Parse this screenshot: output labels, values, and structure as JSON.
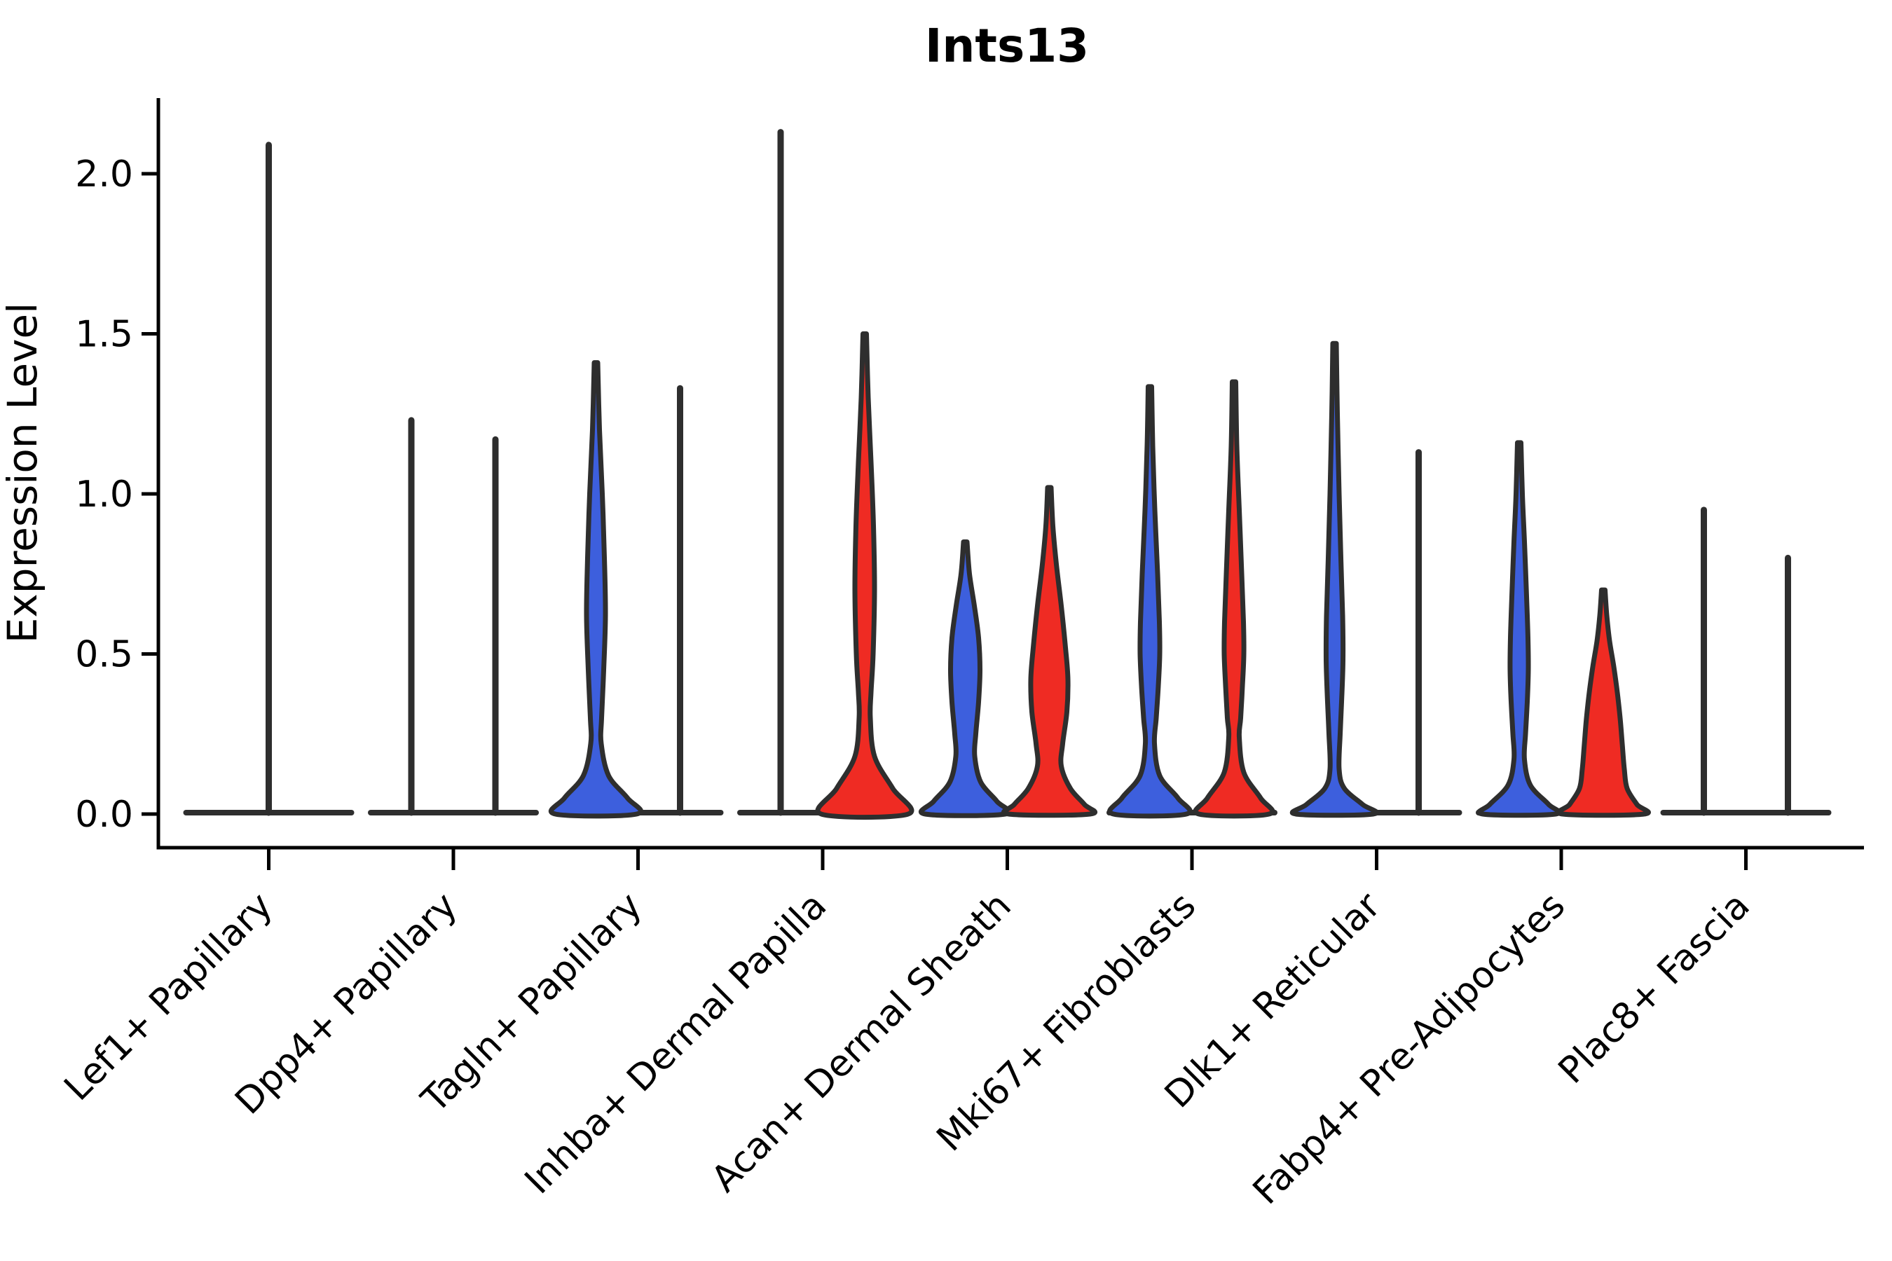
{
  "chart_data": {
    "type": "violin",
    "title": "Ints13",
    "ylabel": "Expression Level",
    "xlabel": "",
    "ylim": [
      -0.105,
      2.34
    ],
    "grid": false,
    "legend": "none",
    "yticks": [
      {
        "value": 0.0,
        "label": "0.0"
      },
      {
        "value": 0.5,
        "label": "0.5"
      },
      {
        "value": 1.0,
        "label": "1.0"
      },
      {
        "value": 1.5,
        "label": "1.5"
      },
      {
        "value": 2.0,
        "label": "2.0"
      }
    ],
    "categories": [
      "Lef1+ Papillary",
      "Dpp4+ Papillary",
      "Tagln+ Papillary",
      "Inhba+ Dermal Papilla",
      "Acan+ Dermal Sheath",
      "Mki67+ Fibroblasts",
      "Dlk1+ Reticular",
      "Fabp4+ Pre-Adipocytes",
      "Plac8+ Fascia"
    ],
    "series_colors": {
      "blue": "#3D5FDD",
      "red": "#EF2B23",
      "edge": "#2E2E2E"
    },
    "groups": [
      {
        "label": "Lef1+ Papillary",
        "violins": [
          {
            "series": "blue",
            "kind": "spike",
            "offset": 0,
            "max": 2.09
          }
        ]
      },
      {
        "label": "Dpp4+ Papillary",
        "violins": [
          {
            "series": "blue",
            "kind": "spike",
            "offset": -60,
            "max": 1.23
          },
          {
            "series": "red",
            "kind": "spike",
            "offset": 60,
            "max": 1.17
          }
        ]
      },
      {
        "label": "Tagln+ Papillary",
        "violins": [
          {
            "series": "blue",
            "kind": "violin",
            "offset": -60,
            "max": 1.41,
            "profile": [
              [
                1.41,
                2.5
              ],
              [
                1.2,
                5
              ],
              [
                1.0,
                9
              ],
              [
                0.8,
                12
              ],
              [
                0.62,
                13.5
              ],
              [
                0.45,
                11
              ],
              [
                0.3,
                8
              ],
              [
                0.22,
                7.5
              ],
              [
                0.12,
                18
              ],
              [
                0.05,
                45
              ],
              [
                0,
                58
              ]
            ]
          },
          {
            "series": "red",
            "kind": "spike",
            "offset": 60,
            "max": 1.33
          }
        ]
      },
      {
        "label": "Inhba+ Dermal Papilla",
        "violins": [
          {
            "series": "blue",
            "kind": "spike",
            "offset": -60,
            "max": 2.13
          },
          {
            "series": "red",
            "kind": "violin",
            "offset": 60,
            "max": 1.5,
            "profile": [
              [
                1.5,
                2.5
              ],
              [
                1.3,
                5
              ],
              [
                1.1,
                9
              ],
              [
                0.9,
                12.5
              ],
              [
                0.7,
                14
              ],
              [
                0.5,
                12
              ],
              [
                0.38,
                9
              ],
              [
                0.3,
                8
              ],
              [
                0.18,
                14
              ],
              [
                0.08,
                40
              ],
              [
                0,
                62
              ]
            ]
          }
        ]
      },
      {
        "label": "Acan+ Dermal Sheath",
        "violins": [
          {
            "series": "blue",
            "kind": "violin",
            "offset": -60,
            "max": 0.85,
            "profile": [
              [
                0.85,
                2.5
              ],
              [
                0.75,
                6
              ],
              [
                0.65,
                13
              ],
              [
                0.55,
                19
              ],
              [
                0.45,
                21
              ],
              [
                0.35,
                19
              ],
              [
                0.25,
                15
              ],
              [
                0.18,
                13.5
              ],
              [
                0.1,
                22
              ],
              [
                0.04,
                45
              ],
              [
                0,
                57
              ]
            ]
          },
          {
            "series": "red",
            "kind": "violin",
            "offset": 60,
            "max": 1.02,
            "profile": [
              [
                1.02,
                2.5
              ],
              [
                0.9,
                5
              ],
              [
                0.78,
                10
              ],
              [
                0.65,
                17
              ],
              [
                0.52,
                23
              ],
              [
                0.42,
                26.5
              ],
              [
                0.32,
                25
              ],
              [
                0.22,
                19
              ],
              [
                0.15,
                17
              ],
              [
                0.08,
                30
              ],
              [
                0.03,
                50
              ],
              [
                0,
                58
              ]
            ]
          }
        ]
      },
      {
        "label": "Mki67+ Fibroblasts",
        "violins": [
          {
            "series": "blue",
            "kind": "violin",
            "offset": -60,
            "max": 1.335,
            "profile": [
              [
                1.335,
                2.5
              ],
              [
                1.15,
                4
              ],
              [
                0.95,
                7
              ],
              [
                0.75,
                11
              ],
              [
                0.6,
                13.5
              ],
              [
                0.5,
                14
              ],
              [
                0.4,
                12
              ],
              [
                0.3,
                9
              ],
              [
                0.22,
                6.5
              ],
              [
                0.12,
                14
              ],
              [
                0.05,
                40
              ],
              [
                0,
                52
              ]
            ]
          },
          {
            "series": "red",
            "kind": "violin",
            "offset": 60,
            "max": 1.35,
            "profile": [
              [
                1.35,
                2.5
              ],
              [
                1.15,
                4
              ],
              [
                0.95,
                7.5
              ],
              [
                0.75,
                11
              ],
              [
                0.6,
                13.5
              ],
              [
                0.5,
                14
              ],
              [
                0.4,
                12
              ],
              [
                0.3,
                9.5
              ],
              [
                0.24,
                7.5
              ],
              [
                0.13,
                14
              ],
              [
                0.05,
                38
              ],
              [
                0,
                50
              ]
            ]
          }
        ]
      },
      {
        "label": "Dlk1+ Reticular",
        "violins": [
          {
            "series": "blue",
            "kind": "violin",
            "offset": -60,
            "max": 1.47,
            "profile": [
              [
                1.47,
                2.5
              ],
              [
                1.25,
                4
              ],
              [
                1.0,
                6.5
              ],
              [
                0.8,
                9
              ],
              [
                0.62,
                11.5
              ],
              [
                0.48,
                12
              ],
              [
                0.35,
                10
              ],
              [
                0.25,
                8
              ],
              [
                0.14,
                6.5
              ],
              [
                0.08,
                14
              ],
              [
                0.03,
                40
              ],
              [
                0,
                55
              ]
            ]
          },
          {
            "series": "red",
            "kind": "spike",
            "offset": 60,
            "max": 1.13
          }
        ]
      },
      {
        "label": "Fabp4+ Pre-Adipocytes",
        "violins": [
          {
            "series": "blue",
            "kind": "violin",
            "offset": -60,
            "max": 1.16,
            "profile": [
              [
                1.16,
                2.5
              ],
              [
                1.0,
                4.5
              ],
              [
                0.85,
                7.5
              ],
              [
                0.68,
                10.5
              ],
              [
                0.55,
                12.5
              ],
              [
                0.45,
                13
              ],
              [
                0.35,
                11.5
              ],
              [
                0.25,
                9
              ],
              [
                0.17,
                7.5
              ],
              [
                0.09,
                16
              ],
              [
                0.03,
                42
              ],
              [
                0,
                52
              ]
            ]
          },
          {
            "series": "red",
            "kind": "violin",
            "offset": 60,
            "max": 0.7,
            "profile": [
              [
                0.7,
                2.5
              ],
              [
                0.62,
                5
              ],
              [
                0.54,
                9
              ],
              [
                0.46,
                15
              ],
              [
                0.38,
                20
              ],
              [
                0.3,
                24
              ],
              [
                0.22,
                27
              ],
              [
                0.14,
                30
              ],
              [
                0.08,
                34
              ],
              [
                0.03,
                48
              ],
              [
                0,
                58
              ]
            ]
          }
        ]
      },
      {
        "label": "Plac8+ Fascia",
        "violins": [
          {
            "series": "blue",
            "kind": "spike",
            "offset": -60,
            "max": 0.95
          },
          {
            "series": "red",
            "kind": "spike",
            "offset": 60,
            "max": 0.8
          }
        ]
      }
    ]
  }
}
